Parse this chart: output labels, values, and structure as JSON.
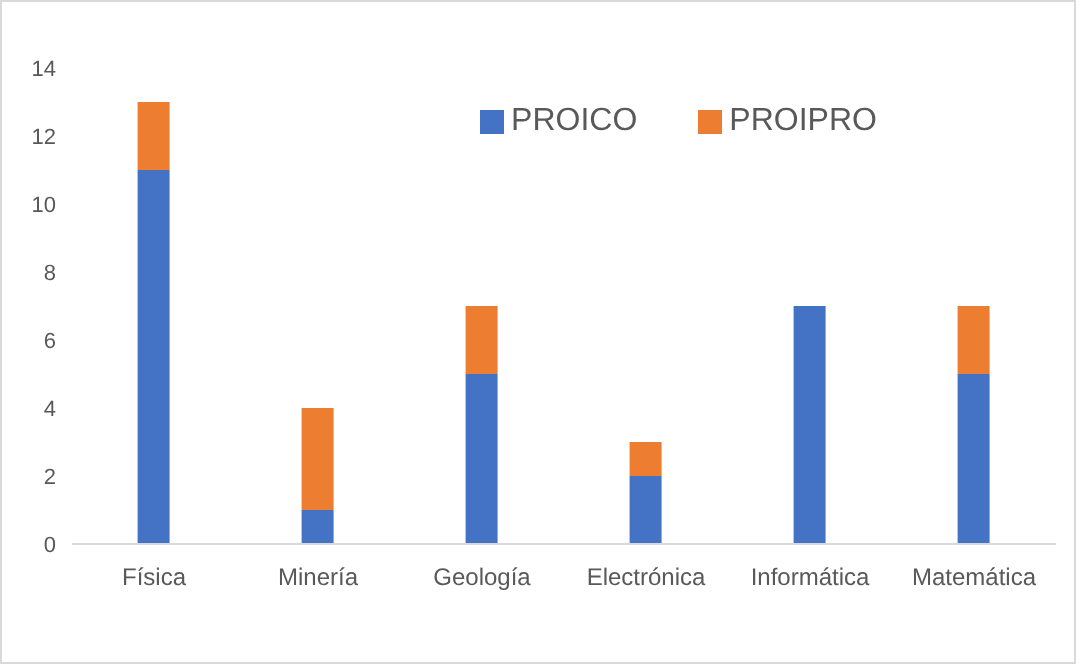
{
  "chart_data": {
    "type": "bar",
    "stacked": true,
    "categories": [
      "Física",
      "Minería",
      "Geología",
      "Electrónica",
      "Informática",
      "Matemática"
    ],
    "series": [
      {
        "name": "PROICO",
        "color": "#4472c4",
        "values": [
          11,
          1,
          5,
          2,
          7,
          5
        ]
      },
      {
        "name": "PROIPRO",
        "color": "#ed7d31",
        "values": [
          2,
          3,
          2,
          1,
          0,
          2
        ]
      }
    ],
    "ylim": [
      0,
      14
    ],
    "yticks": [
      0,
      2,
      4,
      6,
      8,
      10,
      12,
      14
    ],
    "grid": false,
    "legend": "top"
  }
}
